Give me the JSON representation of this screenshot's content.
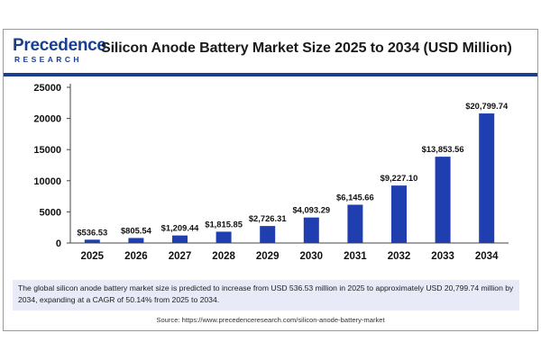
{
  "brand": {
    "logo_word": "Precedence",
    "logo_sub": "RESEARCH",
    "primary_color": "#1b3f8f"
  },
  "title": "Silicon Anode Battery Market Size 2025 to 2034 (USD Million)",
  "chart_data": {
    "type": "bar",
    "categories": [
      "2025",
      "2026",
      "2027",
      "2028",
      "2029",
      "2030",
      "2031",
      "2032",
      "2033",
      "2034"
    ],
    "values": [
      536.53,
      805.54,
      1209.44,
      1815.85,
      2726.31,
      4093.29,
      6145.66,
      9227.1,
      13853.56,
      20799.74
    ],
    "value_labels": [
      "$536.53",
      "$805.54",
      "$1,209.44",
      "$1,815.85",
      "$2,726.31",
      "$4,093.29",
      "$6,145.66",
      "$9,227.10",
      "$13,853.56",
      "$20,799.74"
    ],
    "yticks": [
      "0",
      "5000",
      "10000",
      "15000",
      "20000",
      "25000"
    ],
    "ylim": [
      0,
      25000
    ],
    "grid": false,
    "bar_color": "#1f3fb0",
    "xlabel": "",
    "ylabel": ""
  },
  "note": "The global silicon anode battery market size is predicted to increase from USD 536.53 million in 2025 to approximately USD 20,799.74 million by 2034, expanding at a CAGR of 50.14% from 2025 to 2034.",
  "source": "Source: https://www.precedenceresearch.com/silicon-anode-battery-market"
}
